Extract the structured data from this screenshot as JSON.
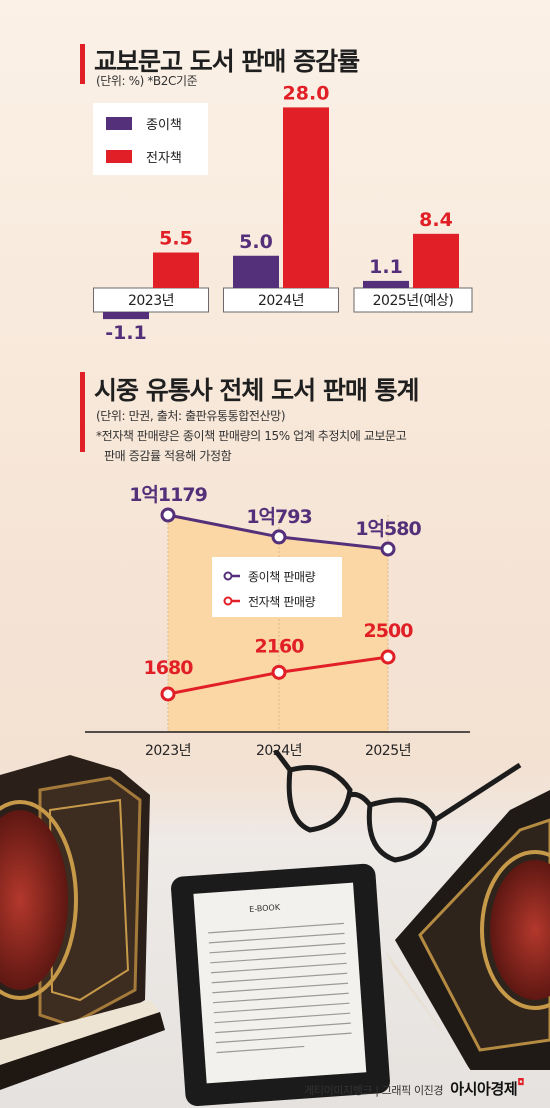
{
  "section1": {
    "title": "교보문고 도서 판매 증감률",
    "note": "(단위: %) *B2C기준",
    "legend": [
      "종이책",
      "전자책"
    ]
  },
  "section2": {
    "title": "시중 유통사 전체 도서 판매 통계",
    "note1": "(단위: 만권, 출처: 출판유통통합전산망)",
    "note2": "*전자책 판매량은 종이책 판매량의 15% 업계 추정치에 교보문고",
    "note3": "판매 증감률 적용해 가정함",
    "legend": [
      "종이책 판매량",
      "전자책 판매량"
    ]
  },
  "colors": {
    "paper": "#55307a",
    "ebook": "#e11f26",
    "accent": "#e11f26",
    "area": "#fbd7a6"
  },
  "ebook_screen_label": "E-BOOK",
  "footer": {
    "credit": "게티이미지뱅크 | 그래픽 이진경",
    "brand": "아시아경제"
  },
  "chart_data": [
    {
      "type": "bar",
      "title": "교보문고 도서 판매 증감률",
      "categories": [
        "2023년",
        "2024년",
        "2025년(예상)"
      ],
      "series": [
        {
          "name": "종이책",
          "values": [
            -1.1,
            5.0,
            1.1
          ],
          "labels": [
            "-1.1",
            "5.0",
            "1.1"
          ]
        },
        {
          "name": "전자책",
          "values": [
            5.5,
            28.0,
            8.4
          ],
          "labels": [
            "5.5",
            "28.0",
            "8.4"
          ]
        }
      ],
      "ylabel": "(단위: %)",
      "legend_position": "top-left",
      "grid": false
    },
    {
      "type": "line",
      "title": "시중 유통사 전체 도서 판매 통계",
      "categories": [
        "2023년",
        "2024년",
        "2025년"
      ],
      "series": [
        {
          "name": "종이책 판매량",
          "values": [
            11179,
            10793,
            10580
          ],
          "labels": [
            "1억1179",
            "1억793",
            "1억580"
          ]
        },
        {
          "name": "전자책 판매량",
          "values": [
            1680,
            2160,
            2500
          ],
          "labels": [
            "1680",
            "2160",
            "2500"
          ]
        }
      ],
      "ylabel": "(단위: 만권)",
      "legend_position": "center",
      "grid": false
    }
  ]
}
